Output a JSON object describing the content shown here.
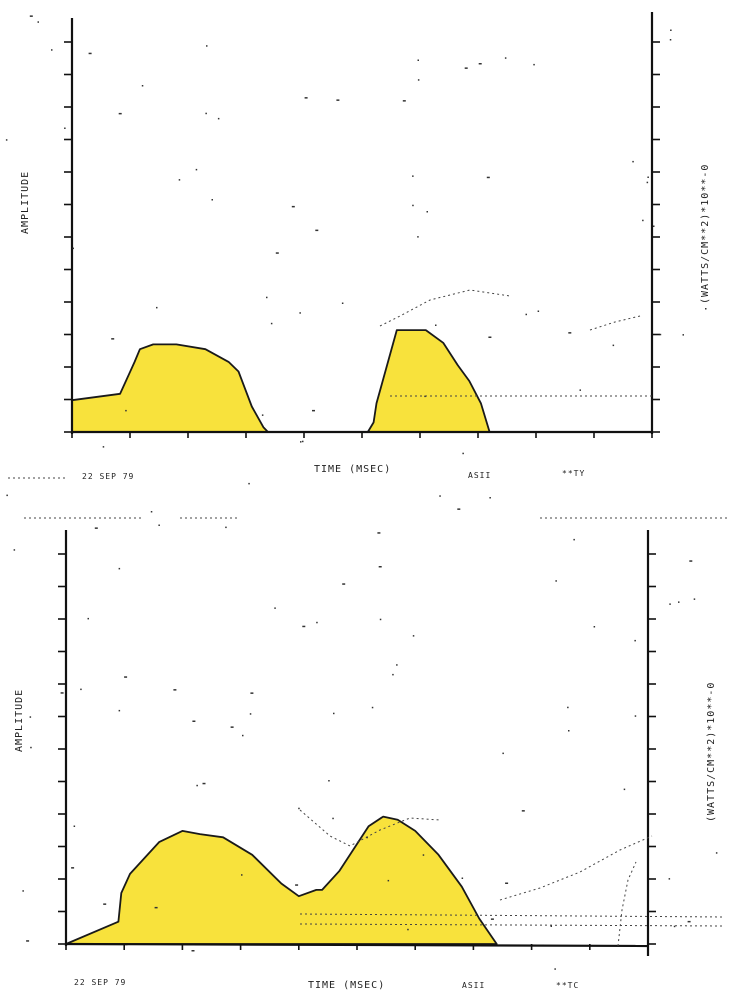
{
  "chart_data": [
    {
      "type": "area",
      "ylabel_left": "AMPLITUDE",
      "ylabel_right": "(WATTS/CM**2)*10**-0",
      "xlabel": "TIME (MSEC)",
      "date_label": "22 SEP 79",
      "extra_label_1": "ASII",
      "extra_label_2": "**TY",
      "xlim": [
        0,
        1
      ],
      "ylim": [
        0,
        13
      ],
      "x": [
        0.0,
        0.083,
        0.108,
        0.117,
        0.14,
        0.18,
        0.23,
        0.27,
        0.287,
        0.31,
        0.33,
        0.338,
        0.34,
        0.368,
        0.51,
        0.52,
        0.525,
        0.56,
        0.61,
        0.64,
        0.665,
        0.685,
        0.705,
        0.72
      ],
      "y": [
        1.0,
        1.2,
        2.2,
        2.6,
        2.75,
        2.75,
        2.6,
        2.2,
        1.9,
        0.8,
        0.15,
        0.0,
        0.0,
        0.0,
        0.0,
        0.3,
        0.9,
        3.2,
        3.2,
        2.8,
        2.1,
        1.6,
        0.9,
        0.0
      ]
    },
    {
      "type": "area",
      "ylabel_left": "AMPLITUDE",
      "ylabel_right": "(WATTS/CM**2)*10**-0",
      "xlabel": "TIME (MSEC)",
      "date_label": "22 SEP 79",
      "extra_label_1": "ASII",
      "extra_label_2": "**TC",
      "xlim": [
        0,
        1
      ],
      "ylim": [
        0,
        13
      ],
      "x": [
        0.0,
        0.09,
        0.095,
        0.11,
        0.16,
        0.2,
        0.23,
        0.27,
        0.32,
        0.37,
        0.4,
        0.43,
        0.44,
        0.47,
        0.52,
        0.545,
        0.57,
        0.6,
        0.64,
        0.68,
        0.71,
        0.74
      ],
      "y": [
        0.0,
        0.7,
        1.6,
        2.2,
        3.2,
        3.55,
        3.45,
        3.35,
        2.8,
        1.9,
        1.5,
        1.7,
        1.7,
        2.3,
        3.7,
        4.0,
        3.9,
        3.55,
        2.8,
        1.8,
        0.8,
        0.0
      ]
    }
  ]
}
